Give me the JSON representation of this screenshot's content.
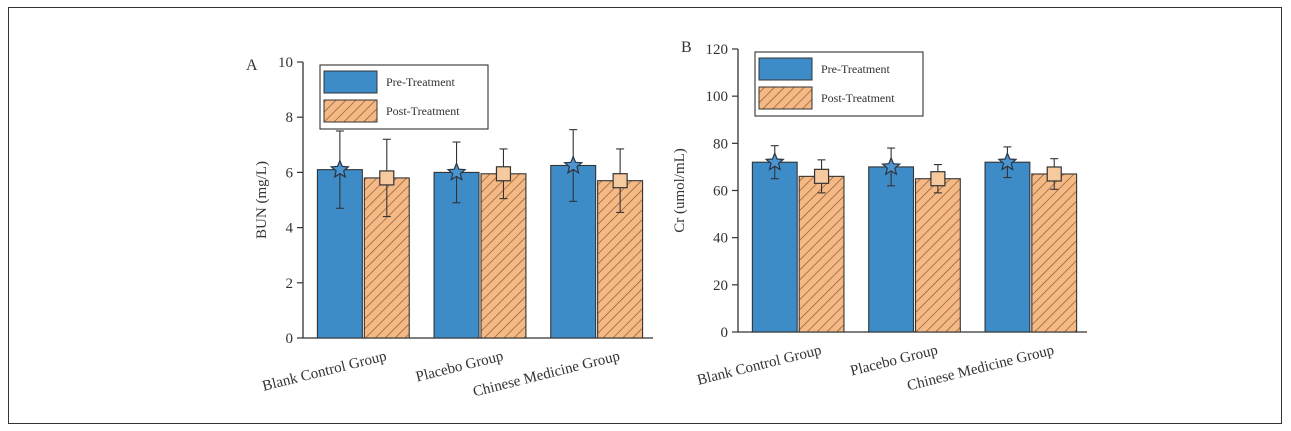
{
  "chart_data": [
    {
      "type": "bar",
      "panel_label": "A",
      "categories": [
        "Blank Control Group",
        "Placebo Group",
        "Chinese Medicine Group"
      ],
      "series": [
        {
          "name": "Pre-Treatment",
          "values": [
            6.1,
            6.0,
            6.25
          ],
          "errors": [
            1.4,
            1.1,
            1.3
          ],
          "color": "#3d8cc8",
          "marker": "star"
        },
        {
          "name": "Post-Treatment",
          "values": [
            5.8,
            5.95,
            5.7
          ],
          "errors": [
            1.4,
            0.9,
            1.15
          ],
          "color": "#f5b986",
          "hatch_color": "#8a5a2e",
          "marker": "square"
        }
      ],
      "ylabel": "BUN (mg/L)",
      "xlabel": "",
      "ylim": [
        0,
        10
      ],
      "yticks": [
        0,
        2,
        4,
        6,
        8,
        10
      ],
      "legend": "top-left"
    },
    {
      "type": "bar",
      "panel_label": "B",
      "categories": [
        "Blank Control Group",
        "Placebo Group",
        "Chinese Medicine Group"
      ],
      "series": [
        {
          "name": "Pre-Treatment",
          "values": [
            72,
            70,
            72
          ],
          "errors": [
            7,
            8,
            6.5
          ],
          "color": "#3d8cc8",
          "marker": "star"
        },
        {
          "name": "Post-Treatment",
          "values": [
            66,
            65,
            67
          ],
          "errors": [
            7,
            6,
            6.5
          ],
          "color": "#f5b986",
          "hatch_color": "#8a5a2e",
          "marker": "square"
        }
      ],
      "ylabel": "Cr (umol/mL)",
      "xlabel": "",
      "ylim": [
        0,
        120
      ],
      "yticks": [
        0,
        20,
        40,
        60,
        80,
        100,
        120
      ],
      "legend": "top-left"
    }
  ]
}
